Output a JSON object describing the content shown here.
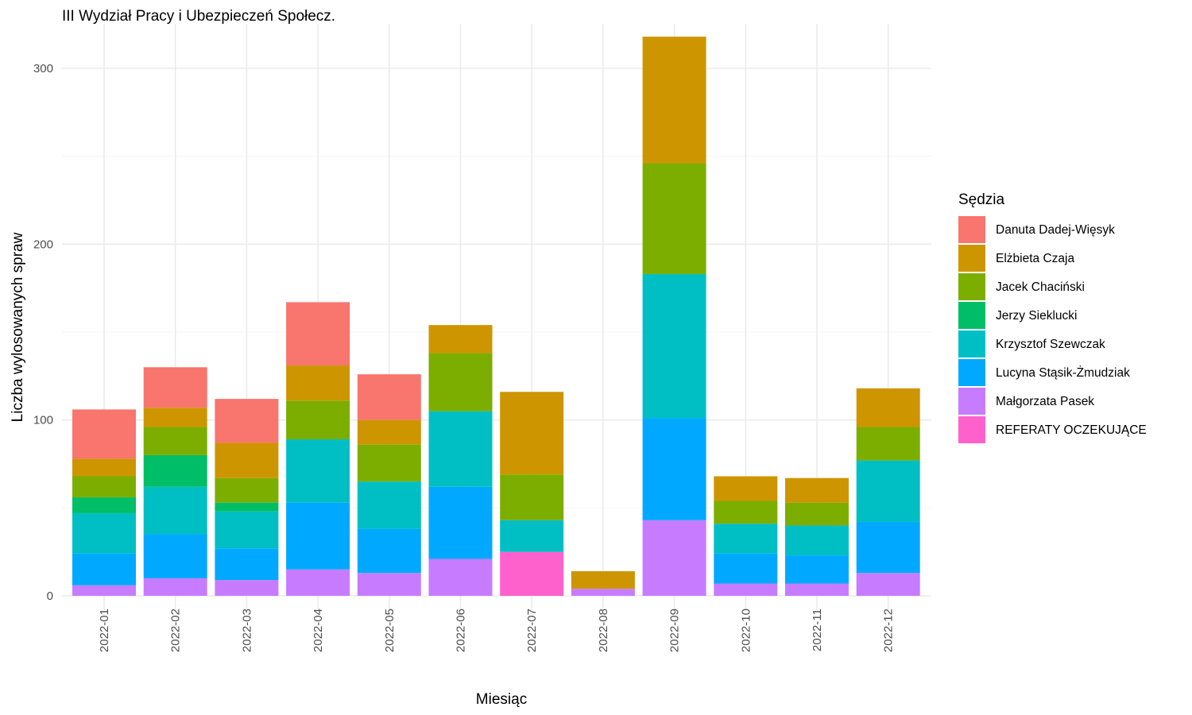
{
  "chart_data": {
    "type": "bar",
    "stacked": true,
    "title": "III Wydział Pracy i Ubezpieczeń Społecz.",
    "xlabel": "Miesiąc",
    "ylabel": "Liczba wylosowanych spraw",
    "ylim": [
      0,
      320
    ],
    "yticks": [
      "0",
      "100",
      "200",
      "300"
    ],
    "grid": true,
    "legend_title": "Sędzia",
    "legend_position": "right",
    "categories": [
      "2022-01",
      "2022-02",
      "2022-03",
      "2022-04",
      "2022-05",
      "2022-06",
      "2022-07",
      "2022-08",
      "2022-09",
      "2022-10",
      "2022-11",
      "2022-12"
    ],
    "series": [
      {
        "name": "Danuta Dadej-Więsyk",
        "color": "#F8766D",
        "values": [
          28,
          23,
          25,
          36,
          26,
          0,
          0,
          0,
          0,
          0,
          0,
          0
        ]
      },
      {
        "name": "Elżbieta Czaja",
        "color": "#CD9600",
        "values": [
          10,
          11,
          20,
          20,
          14,
          16,
          47,
          10,
          72,
          14,
          14,
          22
        ]
      },
      {
        "name": "Jacek Chaciński",
        "color": "#7CAE00",
        "values": [
          12,
          16,
          14,
          22,
          21,
          33,
          26,
          0,
          63,
          13,
          13,
          19
        ]
      },
      {
        "name": "Jerzy Sieklucki",
        "color": "#00BE67",
        "values": [
          9,
          18,
          5,
          0,
          0,
          0,
          0,
          0,
          0,
          0,
          0,
          0
        ]
      },
      {
        "name": "Krzysztof Szewczak",
        "color": "#00BFC4",
        "values": [
          23,
          27,
          21,
          36,
          27,
          43,
          18,
          0,
          82,
          17,
          17,
          35
        ]
      },
      {
        "name": "Lucyna Stąsik-Żmudziak",
        "color": "#00A9FF",
        "values": [
          18,
          25,
          18,
          38,
          25,
          41,
          0,
          0,
          58,
          17,
          16,
          29
        ]
      },
      {
        "name": "Małgorzata Pasek",
        "color": "#C77CFF",
        "values": [
          6,
          10,
          9,
          15,
          13,
          21,
          0,
          4,
          43,
          7,
          7,
          13
        ]
      },
      {
        "name": "REFERATY OCZEKUJĄCE",
        "color": "#FF61CC",
        "values": [
          0,
          0,
          0,
          0,
          0,
          0,
          25,
          0,
          0,
          0,
          0,
          0
        ]
      }
    ]
  }
}
